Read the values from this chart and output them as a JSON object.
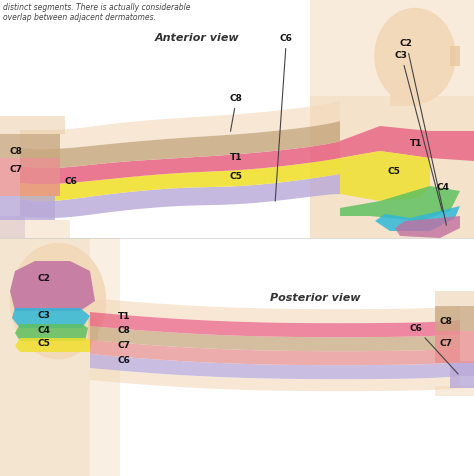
{
  "top_text": "distinct segments. There is actually considerable\noverlap between adjacent dermatomes.",
  "anterior_label": "Anterior view",
  "posterior_label": "Posterior view",
  "background_color": "#ffffff",
  "fig_width": 4.74,
  "fig_height": 4.76,
  "dpi": 100,
  "colors": {
    "C2": "#c070a0",
    "C3": "#30b8d8",
    "C4": "#60c060",
    "C5": "#f0e030",
    "C6": "#b8a8d8",
    "C7": "#e89090",
    "C8": "#c8a880",
    "T1": "#e86080",
    "skin_light": "#f2d8b8",
    "skin_mid": "#e8c8a0",
    "skin_dark": "#d4a878",
    "hand_orange": "#e88050"
  }
}
